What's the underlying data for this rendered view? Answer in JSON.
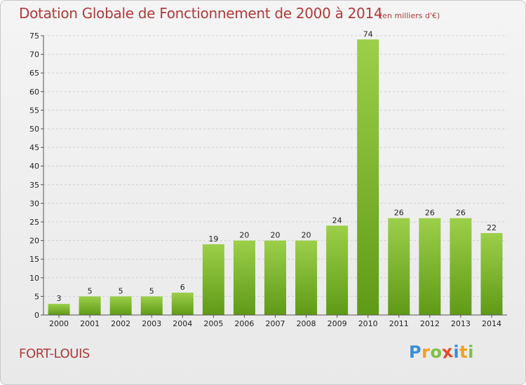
{
  "chart_data": {
    "type": "bar",
    "title": "Dotation Globale de Fonctionnement de 2000 à 2014",
    "subtitle": "(en milliers d'€)",
    "categories": [
      "2000",
      "2001",
      "2002",
      "2003",
      "2004",
      "2005",
      "2006",
      "2007",
      "2008",
      "2009",
      "2010",
      "2011",
      "2012",
      "2013",
      "2014"
    ],
    "values": [
      3,
      5,
      5,
      5,
      6,
      19,
      20,
      20,
      20,
      24,
      74,
      26,
      26,
      26,
      22
    ],
    "xlabel": "",
    "ylabel": "",
    "ylim": [
      0,
      75
    ],
    "yticks": [
      0,
      5,
      10,
      15,
      20,
      25,
      30,
      35,
      40,
      45,
      50,
      55,
      60,
      65,
      70,
      75
    ],
    "grid": true,
    "colors": {
      "bar_light": "#9ccf4a",
      "bar_dark": "#5f9a16",
      "title": "#b03a3a"
    }
  },
  "commune": "FORT-LOUIS",
  "logo": {
    "letters": [
      "P",
      "r",
      "o",
      "x",
      "i",
      "t",
      "i"
    ],
    "colors": [
      "#3a8fd6",
      "#f0a020",
      "#7cc242",
      "#e04a2a",
      "#3a8fd6",
      "#f0a020",
      "#7cc242"
    ]
  }
}
